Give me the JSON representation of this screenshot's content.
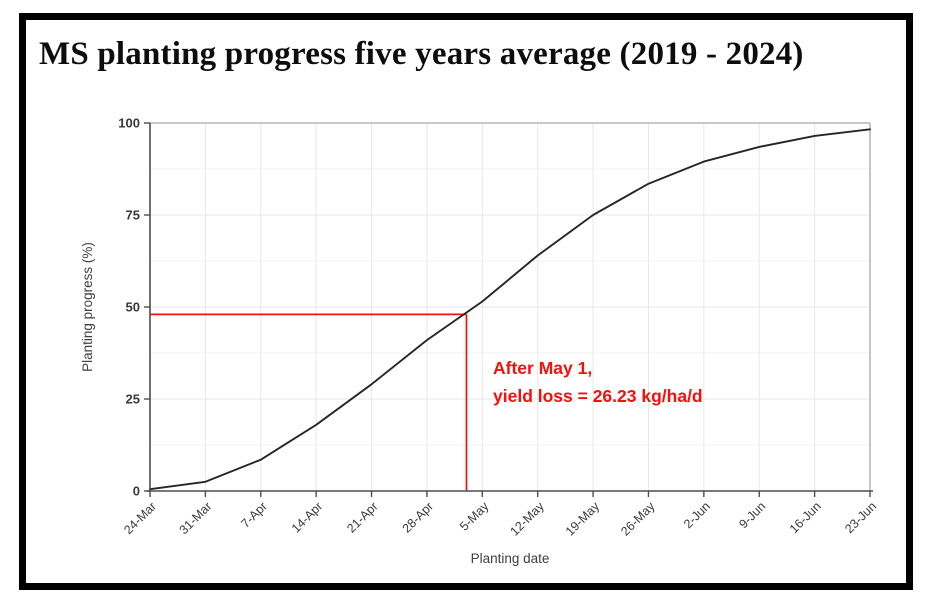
{
  "title": "MS planting progress five years average (2019 - 2024)",
  "chart_data": {
    "type": "line",
    "title": "MS planting progress five years average (2019 - 2024)",
    "xlabel": "Planting date",
    "ylabel": "Planting progress (%)",
    "categories": [
      "24-Mar",
      "31-Mar",
      "7-Apr",
      "14-Apr",
      "21-Apr",
      "28-Apr",
      "5-May",
      "12-May",
      "19-May",
      "26-May",
      "2-Jun",
      "9-Jun",
      "16-Jun",
      "23-Jun"
    ],
    "values": [
      0.5,
      2.5,
      8.5,
      18,
      29,
      41,
      51.5,
      64,
      75,
      83.5,
      89.5,
      93.5,
      96.5,
      98.3
    ],
    "ylim": [
      0,
      100
    ],
    "yticks": [
      0,
      25,
      50,
      75,
      100
    ],
    "grid": {
      "vertical": "weekly major only",
      "horizontal": "major every 25, minor every 12.5"
    },
    "legend": "none",
    "annotation": {
      "line1": "After May 1,",
      "line2": "yield loss = 26.23 kg/ha/d",
      "point": {
        "date": "3-May",
        "day_index": 40,
        "value": 48
      }
    },
    "colors": {
      "line": "#262626",
      "annotation": "#f80f0c",
      "grid_major": "#e7e7e7",
      "grid_minor": "#f3f3f3",
      "axis": "#4d4d4d",
      "panel_edge": "#a8a8a8",
      "tick_label": "#3a3a3a",
      "axis_title": "#404040"
    }
  }
}
